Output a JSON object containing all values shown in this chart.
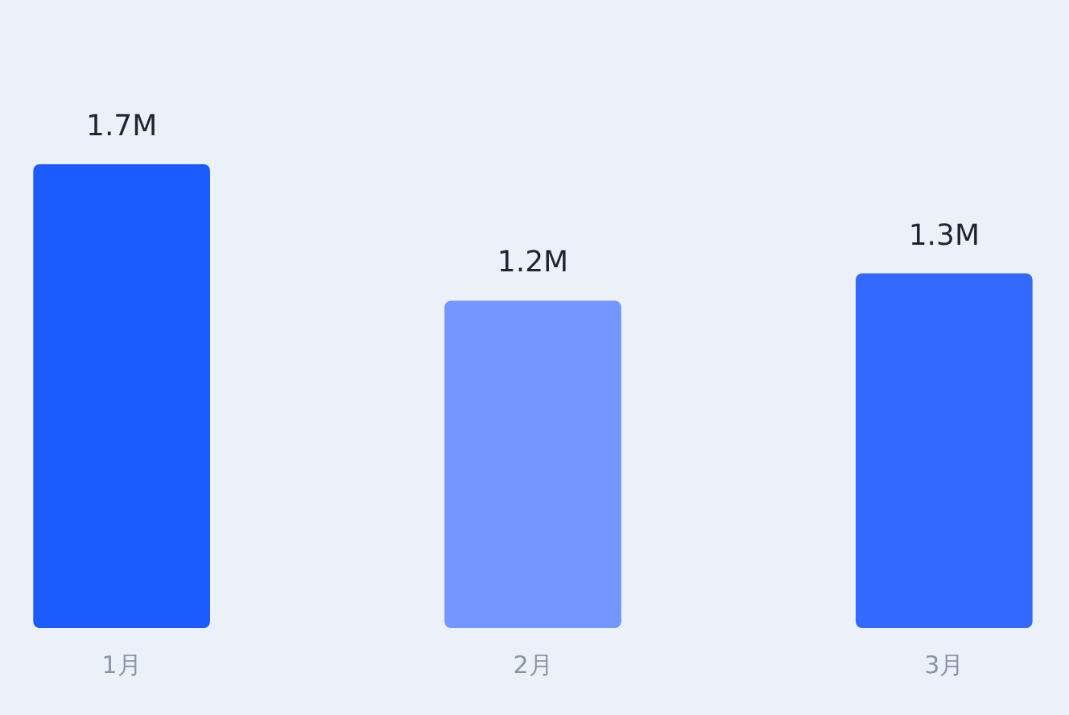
{
  "chart_data": {
    "type": "bar",
    "categories": [
      "1月",
      "2月",
      "3月"
    ],
    "values": [
      1.7,
      1.2,
      1.3
    ],
    "colors": [
      "#1a5cff",
      "#7396ff",
      "#3369ff"
    ],
    "value_labels": [
      "1.7M",
      "1.2M",
      "1.3M"
    ]
  }
}
